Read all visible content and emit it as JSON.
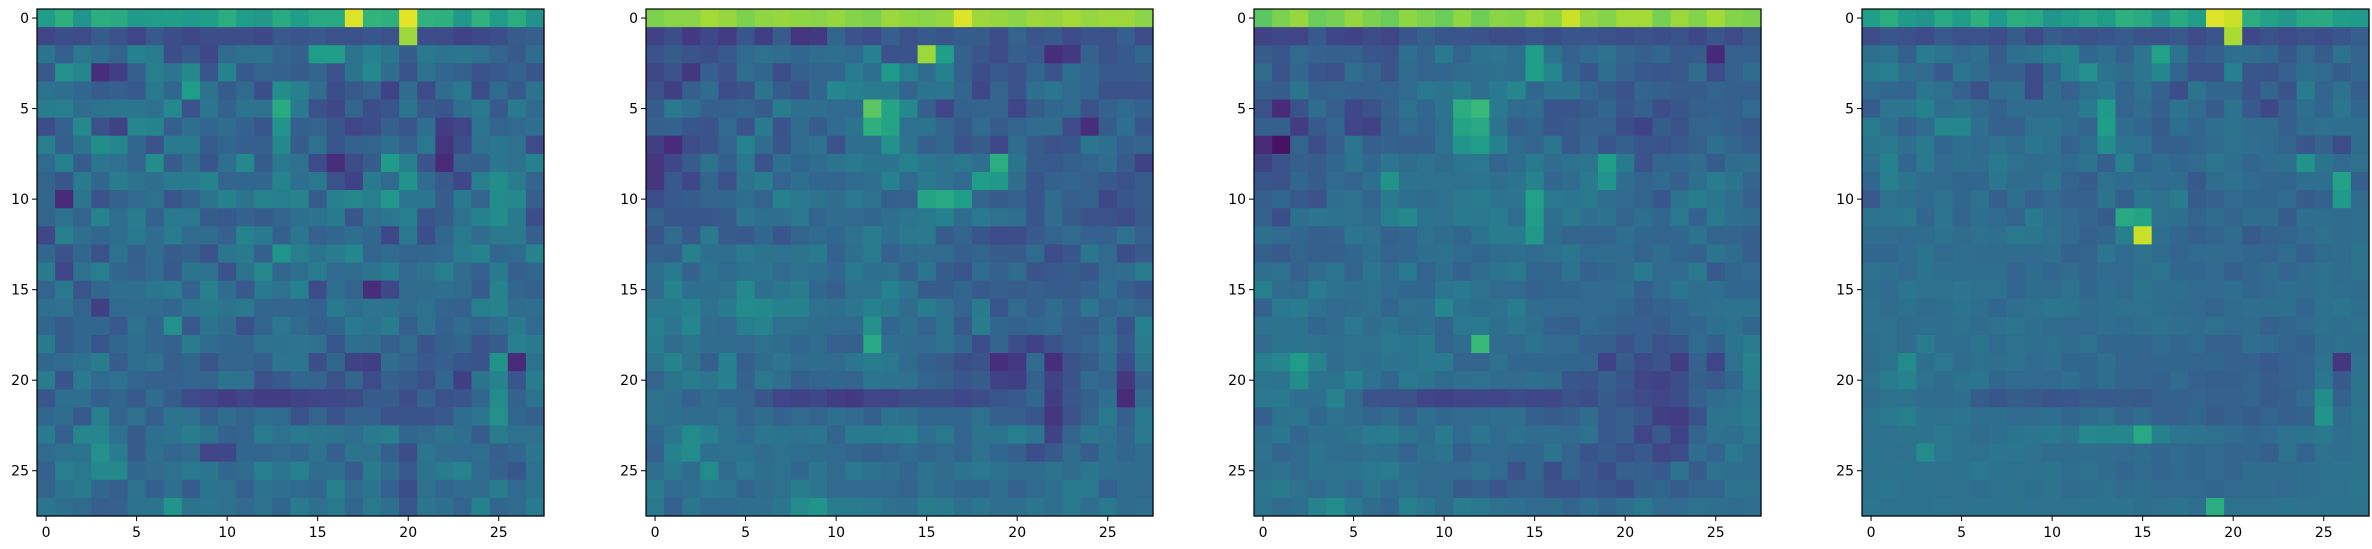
{
  "colormap": {
    "name": "viridis",
    "stops": [
      "#440154",
      "#482878",
      "#3e4989",
      "#31688e",
      "#26828e",
      "#1f9e89",
      "#35b779",
      "#6ece58",
      "#b5de2b",
      "#fde725"
    ]
  },
  "chart_data": [
    {
      "type": "heatmap",
      "title": "",
      "xlabel": "",
      "ylabel": "",
      "rows": 28,
      "cols": 28,
      "value_range": [
        0,
        1
      ],
      "xticks": [
        0,
        5,
        10,
        15,
        20,
        25
      ],
      "yticks": [
        0,
        5,
        10,
        15,
        20,
        25
      ],
      "xlim": [
        -0.5,
        27.5
      ],
      "ylim": [
        27.5,
        -0.5
      ],
      "values": "[[0.55,0.63,0.52,0.62,0.61,0.54,0.55,0.56,0.54,0.56,0.62,0.55,0.53,0.61,0.56,0.6,0.6,0.95,0.65,0.63,0.96,0.64,0.63,0.53,0.64,0.55,0.62,0.51],[0.21,0.24,0.23,0.29,0.26,0.21,0.28,0.24,0.22,0.24,0.24,0.24,0.22,0.28,0.27,0.28,0.25,0.25,0.27,0.25,0.85,0.24,0.23,0.2,0.22,0.24,0.29,0.3],[0.38,0.3,0.4,0.36,0.32,0.44,0.42,0.24,0.28,0.22,0.34,0.37,0.38,0.32,0.3,0.55,0.56,0.38,0.44,0.39,0.29,0.4,0.38,0.39,0.37,0.32,0.28,0.35],[0.28,0.5,0.46,0.13,0.19,0.3,0.43,0.39,0.47,0.27,0.45,0.28,0.32,0.31,0.29,0.32,0.25,0.38,0.47,0.35,0.26,0.37,0.33,0.31,0.26,0.28,0.31,0.27],[0.38,0.36,0.33,0.29,0.3,0.28,0.41,0.33,0.55,0.38,0.29,0.34,0.24,0.49,0.44,0.35,0.24,0.28,0.32,0.2,0.35,0.23,0.35,0.4,0.24,0.34,0.28,0.38],[0.42,0.43,0.35,0.38,0.39,0.39,0.37,0.47,0.26,0.39,0.31,0.38,0.37,0.61,0.41,0.25,0.22,0.32,0.24,0.27,0.38,0.28,0.27,0.36,0.4,0.28,0.41,0.34],[0.24,0.31,0.47,0.25,0.2,0.46,0.45,0.3,0.36,0.33,0.35,0.31,0.27,0.52,0.3,0.32,0.27,0.21,0.24,0.3,0.27,0.36,0.18,0.21,0.39,0.32,0.34,0.36],[0.43,0.3,0.38,0.49,0.46,0.33,0.26,0.41,0.41,0.29,0.33,0.3,0.3,0.47,0.29,0.37,0.27,0.31,0.32,0.36,0.31,0.4,0.15,0.24,0.37,0.39,0.37,0.23],[0.34,0.44,0.29,0.39,0.37,0.32,0.49,0.29,0.36,0.27,0.36,0.47,0.29,0.4,0.37,0.23,0.13,0.23,0.29,0.54,0.43,0.26,0.12,0.31,0.3,0.39,0.37,0.44],[0.32,0.27,0.41,0.33,0.42,0.38,0.36,0.41,0.41,0.45,0.32,0.33,0.33,0.45,0.36,0.4,0.25,0.2,0.41,0.34,0.51,0.35,0.28,0.22,0.43,0.49,0.42,0.32],[0.33,0.12,0.39,0.26,0.31,0.34,0.37,0.27,0.31,0.38,0.44,0.38,0.45,0.43,0.45,0.29,0.43,0.47,0.43,0.53,0.39,0.39,0.29,0.41,0.32,0.48,0.47,0.3],[0.32,0.37,0.32,0.45,0.36,0.42,0.31,0.41,0.4,0.29,0.28,0.31,0.29,0.32,0.36,0.38,0.41,0.27,0.37,0.39,0.43,0.27,0.29,0.37,0.44,0.48,0.41,0.24],[0.22,0.43,0.36,0.33,0.36,0.41,0.35,0.42,0.34,0.35,0.31,0.45,0.41,0.3,0.39,0.31,0.33,0.36,0.33,0.22,0.4,0.24,0.33,0.4,0.35,0.4,0.41,0.3],[0.33,0.25,0.33,0.25,0.37,0.3,0.35,0.29,0.31,0.26,0.39,0.41,0.3,0.52,0.43,0.38,0.42,0.46,0.32,0.34,0.32,0.33,0.34,0.42,0.45,0.33,0.34,0.45],[0.41,0.21,0.37,0.43,0.33,0.31,0.34,0.28,0.38,0.37,0.26,0.38,0.47,0.33,0.36,0.42,0.34,0.35,0.38,0.42,0.34,0.37,0.43,0.35,0.31,0.41,0.3,0.33],[0.32,0.4,0.27,0.33,0.36,0.36,0.39,0.41,0.31,0.43,0.35,0.28,0.41,0.37,0.44,0.23,0.36,0.32,0.13,0.22,0.35,0.35,0.36,0.34,0.29,0.45,0.33,0.31],[0.36,0.37,0.32,0.19,0.34,0.35,0.35,0.33,0.39,0.41,0.38,0.4,0.33,0.32,0.33,0.31,0.41,0.36,0.39,0.38,0.34,0.37,0.32,0.31,0.43,0.45,0.35,0.36],[0.33,0.29,0.33,0.33,0.28,0.37,0.33,0.5,0.28,0.38,0.35,0.25,0.32,0.4,0.34,0.3,0.33,0.41,0.38,0.42,0.3,0.37,0.31,0.34,0.32,0.35,0.41,0.34],[0.41,0.29,0.33,0.27,0.33,0.36,0.33,0.31,0.42,0.35,0.33,0.32,0.37,0.38,0.39,0.37,0.27,0.36,0.35,0.3,0.35,0.26,0.3,0.33,0.26,0.29,0.43,0.41],[0.33,0.34,0.37,0.42,0.29,0.36,0.37,0.3,0.33,0.27,0.32,0.32,0.3,0.39,0.39,0.24,0.33,0.2,0.19,0.35,0.32,0.28,0.3,0.27,0.26,0.51,0.12,0.38],[0.42,0.26,0.41,0.34,0.37,0.33,0.31,0.31,0.32,0.32,0.38,0.37,0.25,0.28,0.33,0.32,0.25,0.32,0.23,0.31,0.29,0.25,0.33,0.19,0.38,0.45,0.27,0.42],[0.27,0.36,0.36,0.3,0.33,0.28,0.35,0.29,0.23,0.21,0.18,0.21,0.18,0.18,0.2,0.21,0.22,0.23,0.29,0.29,0.24,0.31,0.25,0.27,0.33,0.48,0.31,0.38],[0.33,0.35,0.28,0.43,0.32,0.37,0.3,0.38,0.37,0.3,0.35,0.32,0.36,0.34,0.26,0.32,0.26,0.31,0.31,0.26,0.26,0.26,0.28,0.35,0.39,0.5,0.33,0.3],[0.41,0.3,0.46,0.46,0.37,0.29,0.36,0.38,0.42,0.38,0.31,0.32,0.42,0.37,0.41,0.39,0.38,0.36,0.41,0.43,0.33,0.34,0.38,0.36,0.29,0.42,0.37,0.37],[0.34,0.37,0.38,0.5,0.42,0.29,0.36,0.33,0.34,0.21,0.22,0.33,0.32,0.34,0.33,0.37,0.3,0.38,0.37,0.3,0.24,0.39,0.35,0.34,0.36,0.3,0.33,0.39],[0.31,0.43,0.4,0.47,0.47,0.33,0.35,0.37,0.4,0.39,0.33,0.35,0.43,0.39,0.44,0.35,0.36,0.29,0.41,0.35,0.28,0.38,0.42,0.45,0.34,0.31,0.27,0.37],[0.32,0.38,0.41,0.33,0.3,0.37,0.3,0.36,0.29,0.38,0.37,0.31,0.38,0.36,0.34,0.33,0.43,0.34,0.38,0.31,0.24,0.37,0.33,0.34,0.35,0.42,0.34,0.38],[0.39,0.36,0.34,0.3,0.31,0.38,0.38,0.52,0.38,0.39,0.37,0.34,0.37,0.33,0.41,0.36,0.4,0.33,0.4,0.36,0.27,0.39,0.36,0.32,0.44,0.33,0.34,0.41]]"
    },
    {
      "type": "heatmap",
      "title": "",
      "xlabel": "",
      "ylabel": "",
      "rows": 28,
      "cols": 28,
      "value_range": [
        0,
        1
      ],
      "xticks": [
        0,
        5,
        10,
        15,
        20,
        25
      ],
      "yticks": [
        0,
        5,
        10,
        15,
        20,
        25
      ],
      "xlim": [
        -0.5,
        27.5
      ],
      "ylim": [
        27.5,
        -0.5
      ],
      "values": "[[0.8,0.82,0.82,0.86,0.84,0.8,0.83,0.84,0.83,0.82,0.84,0.81,0.8,0.85,0.83,0.82,0.84,0.95,0.85,0.84,0.82,0.85,0.84,0.86,0.84,0.85,0.85,0.82],[0.2,0.24,0.17,0.22,0.18,0.27,0.19,0.29,0.15,0.17,0.32,0.26,0.23,0.3,0.25,0.28,0.27,0.29,0.29,0.24,0.32,0.27,0.28,0.23,0.26,0.25,0.3,0.23],[0.26,0.29,0.26,0.24,0.28,0.34,0.37,0.35,0.33,0.35,0.36,0.34,0.44,0.25,0.26,0.85,0.56,0.31,0.27,0.23,0.3,0.28,0.13,0.17,0.31,0.25,0.28,0.33],[0.22,0.25,0.16,0.3,0.25,0.36,0.33,0.24,0.3,0.32,0.33,0.42,0.36,0.54,0.43,0.35,0.44,0.31,0.24,0.28,0.25,0.33,0.26,0.36,0.33,0.28,0.28,0.29],[0.25,0.19,0.3,0.35,0.24,0.26,0.38,0.29,0.26,0.33,0.46,0.44,0.42,0.41,0.32,0.38,0.39,0.32,0.22,0.32,0.25,0.36,0.39,0.34,0.33,0.26,0.26,0.26],[0.29,0.4,0.36,0.3,0.31,0.33,0.29,0.42,0.36,0.36,0.34,0.34,0.74,0.58,0.47,0.3,0.21,0.31,0.32,0.32,0.21,0.29,0.33,0.35,0.25,0.31,0.34,0.31],[0.3,0.31,0.27,0.26,0.34,0.26,0.41,0.26,0.35,0.29,0.34,0.38,0.63,0.58,0.37,0.38,0.32,0.28,0.34,0.29,0.32,0.35,0.35,0.23,0.13,0.29,0.36,0.27],[0.19,0.12,0.23,0.26,0.32,0.45,0.35,0.27,0.34,0.37,0.25,0.36,0.36,0.5,0.38,0.3,0.33,0.26,0.29,0.22,0.35,0.29,0.25,0.27,0.39,0.36,0.3,0.32],[0.15,0.22,0.29,0.37,0.3,0.4,0.26,0.36,0.33,0.35,0.38,0.41,0.38,0.38,0.44,0.39,0.37,0.4,0.36,0.62,0.38,0.29,0.28,0.3,0.32,0.35,0.29,0.2],[0.16,0.28,0.22,0.32,0.25,0.38,0.42,0.32,0.36,0.33,0.32,0.34,0.36,0.44,0.34,0.41,0.37,0.34,0.55,0.53,0.35,0.27,0.31,0.32,0.31,0.28,0.25,0.29],[0.24,0.28,0.29,0.32,0.33,0.36,0.32,0.44,0.4,0.38,0.35,0.4,0.37,0.3,0.31,0.58,0.6,0.56,0.32,0.29,0.31,0.27,0.34,0.3,0.31,0.22,0.27,0.29],[0.31,0.27,0.27,0.27,0.29,0.39,0.36,0.36,0.4,0.32,0.35,0.34,0.33,0.36,0.39,0.4,0.44,0.35,0.41,0.37,0.36,0.27,0.35,0.29,0.25,0.25,0.23,0.28],[0.27,0.35,0.28,0.41,0.29,0.28,0.33,0.27,0.32,0.34,0.33,0.37,0.42,0.36,0.4,0.41,0.29,0.32,0.27,0.23,0.24,0.28,0.32,0.34,0.31,0.31,0.37,0.31],[0.31,0.3,0.43,0.36,0.36,0.4,0.38,0.37,0.38,0.41,0.31,0.36,0.42,0.31,0.34,0.35,0.34,0.3,0.32,0.29,0.29,0.34,0.23,0.27,0.39,0.34,0.24,0.28],[0.36,0.41,0.31,0.38,0.34,0.38,0.39,0.34,0.37,0.36,0.33,0.41,0.36,0.37,0.31,0.39,0.29,0.27,0.34,0.31,0.35,0.26,0.28,0.29,0.27,0.34,0.35,0.42],[0.34,0.45,0.36,0.36,0.37,0.47,0.36,0.39,0.42,0.33,0.3,0.37,0.37,0.44,0.38,0.29,0.29,0.33,0.28,0.3,0.29,0.3,0.29,0.29,0.31,0.36,0.3,0.27],[0.4,0.41,0.44,0.37,0.41,0.48,0.47,0.44,0.44,0.37,0.36,0.39,0.44,0.41,0.35,0.42,0.37,0.32,0.41,0.27,0.34,0.3,0.35,0.31,0.39,0.32,0.35,0.32],[0.43,0.39,0.46,0.35,0.34,0.43,0.45,0.37,0.37,0.35,0.34,0.34,0.5,0.33,0.36,0.32,0.38,0.28,0.42,0.33,0.31,0.33,0.34,0.3,0.29,0.35,0.26,0.44],[0.42,0.35,0.39,0.35,0.35,0.34,0.37,0.35,0.33,0.35,0.31,0.3,0.6,0.36,0.35,0.34,0.37,0.33,0.24,0.32,0.24,0.2,0.26,0.3,0.32,0.37,0.28,0.42],[0.39,0.45,0.38,0.3,0.44,0.3,0.35,0.39,0.34,0.35,0.34,0.39,0.42,0.4,0.34,0.3,0.29,0.24,0.26,0.13,0.17,0.34,0.13,0.25,0.29,0.35,0.24,0.39],[0.32,0.38,0.42,0.39,0.44,0.31,0.4,0.36,0.3,0.32,0.33,0.32,0.39,0.38,0.37,0.32,0.3,0.27,0.29,0.2,0.19,0.31,0.2,0.26,0.34,0.32,0.16,0.31],[0.37,0.36,0.31,0.35,0.33,0.32,0.27,0.21,0.2,0.22,0.18,0.17,0.21,0.21,0.24,0.24,0.24,0.22,0.24,0.27,0.28,0.33,0.18,0.27,0.3,0.36,0.12,0.35],[0.38,0.36,0.35,0.35,0.37,0.32,0.35,0.31,0.34,0.32,0.36,0.34,0.3,0.38,0.36,0.33,0.33,0.33,0.37,0.3,0.3,0.27,0.16,0.25,0.32,0.4,0.3,0.41],[0.33,0.39,0.48,0.44,0.38,0.34,0.39,0.38,0.37,0.39,0.32,0.41,0.41,0.42,0.43,0.36,0.4,0.32,0.38,0.38,0.43,0.39,0.2,0.32,0.39,0.37,0.32,0.41],[0.31,0.44,0.48,0.36,0.37,0.38,0.35,0.37,0.36,0.35,0.34,0.32,0.3,0.32,0.34,0.32,0.34,0.32,0.37,0.33,0.3,0.24,0.28,0.35,0.29,0.36,0.33,0.35],[0.36,0.4,0.35,0.48,0.35,0.4,0.36,0.37,0.33,0.39,0.34,0.4,0.38,0.36,0.33,0.38,0.35,0.38,0.4,0.38,0.35,0.35,0.38,0.35,0.39,0.36,0.35,0.35],[0.42,0.34,0.36,0.4,0.39,0.32,0.35,0.37,0.42,0.39,0.34,0.34,0.34,0.34,0.32,0.37,0.34,0.33,0.33,0.36,0.31,0.34,0.36,0.41,0.4,0.31,0.35,0.34],[0.4,0.31,0.39,0.34,0.34,0.36,0.36,0.39,0.48,0.52,0.42,0.42,0.4,0.37,0.36,0.42,0.41,0.36,0.39,0.36,0.36,0.39,0.36,0.4,0.36,0.4,0.35,0.36]]"
    },
    {
      "type": "heatmap",
      "title": "",
      "xlabel": "",
      "ylabel": "",
      "rows": 28,
      "cols": 28,
      "value_range": [
        0,
        1
      ],
      "xticks": [
        0,
        5,
        10,
        15,
        20,
        25
      ],
      "yticks": [
        0,
        5,
        10,
        15,
        20,
        25
      ],
      "xlim": [
        -0.5,
        27.5
      ],
      "ylim": [
        27.5,
        -0.5
      ],
      "values": "[[0.74,0.8,0.84,0.77,0.79,0.84,0.8,0.77,0.83,0.8,0.77,0.83,0.78,0.82,0.81,0.86,0.83,0.92,0.84,0.81,0.86,0.86,0.79,0.85,0.81,0.86,0.81,0.8],[0.2,0.22,0.21,0.28,0.22,0.2,0.23,0.21,0.27,0.3,0.27,0.27,0.26,0.24,0.24,0.27,0.24,0.27,0.27,0.25,0.24,0.26,0.24,0.26,0.22,0.27,0.23,0.28],[0.29,0.27,0.34,0.31,0.3,0.31,0.27,0.26,0.36,0.32,0.41,0.32,0.38,0.39,0.36,0.56,0.38,0.31,0.34,0.37,0.32,0.3,0.33,0.28,0.29,0.11,0.31,0.31],[0.35,0.26,0.33,0.27,0.25,0.36,0.32,0.26,0.35,0.32,0.33,0.35,0.36,0.37,0.36,0.56,0.46,0.33,0.27,0.36,0.31,0.28,0.27,0.28,0.35,0.23,0.31,0.35],[0.3,0.29,0.38,0.31,0.32,0.31,0.31,0.32,0.34,0.4,0.38,0.42,0.36,0.41,0.46,0.33,0.38,0.38,0.33,0.29,0.25,0.32,0.3,0.29,0.29,0.32,0.3,0.3],[0.25,0.12,0.25,0.35,0.3,0.22,0.25,0.31,0.37,0.33,0.38,0.62,0.67,0.41,0.34,0.35,0.27,0.27,0.29,0.33,0.27,0.3,0.24,0.27,0.3,0.31,0.3,0.34],[0.3,0.3,0.18,0.28,0.33,0.21,0.2,0.3,0.34,0.32,0.37,0.58,0.6,0.38,0.3,0.33,0.27,0.28,0.31,0.31,0.24,0.2,0.29,0.25,0.32,0.32,0.3,0.28],[0.12,0.05,0.32,0.24,0.3,0.39,0.3,0.31,0.3,0.3,0.37,0.52,0.55,0.44,0.34,0.32,0.39,0.28,0.32,0.27,0.3,0.27,0.26,0.28,0.31,0.36,0.33,0.3],[0.2,0.25,0.3,0.29,0.33,0.38,0.33,0.39,0.35,0.37,0.35,0.39,0.4,0.32,0.35,0.41,0.35,0.37,0.39,0.56,0.41,0.26,0.32,0.33,0.35,0.29,0.35,0.36],[0.27,0.25,0.33,0.29,0.34,0.32,0.36,0.51,0.38,0.37,0.37,0.37,0.39,0.36,0.38,0.45,0.33,0.35,0.41,0.52,0.35,0.32,0.34,0.3,0.36,0.42,0.38,0.32],[0.3,0.33,0.28,0.26,0.36,0.37,0.32,0.41,0.36,0.35,0.37,0.4,0.42,0.38,0.39,0.57,0.4,0.39,0.4,0.36,0.34,0.32,0.27,0.38,0.42,0.39,0.36,0.31],[0.31,0.24,0.36,0.39,0.38,0.37,0.35,0.43,0.47,0.38,0.37,0.41,0.4,0.42,0.36,0.55,0.36,0.4,0.36,0.38,0.32,0.36,0.33,0.4,0.31,0.4,0.36,0.35],[0.36,0.34,0.33,0.3,0.31,0.39,0.37,0.31,0.33,0.37,0.35,0.33,0.38,0.42,0.42,0.53,0.35,0.32,0.32,0.32,0.36,0.33,0.32,0.33,0.38,0.32,0.32,0.3],[0.3,0.28,0.32,0.3,0.3,0.33,0.36,0.32,0.33,0.36,0.37,0.34,0.33,0.35,0.36,0.34,0.37,0.39,0.34,0.35,0.34,0.32,0.35,0.33,0.31,0.38,0.35,0.3],[0.36,0.37,0.31,0.35,0.39,0.32,0.39,0.34,0.41,0.32,0.36,0.31,0.35,0.38,0.4,0.33,0.32,0.38,0.31,0.33,0.35,0.41,0.34,0.34,0.4,0.28,0.33,0.34],[0.43,0.35,0.34,0.42,0.38,0.36,0.37,0.34,0.33,0.33,0.39,0.41,0.37,0.34,0.34,0.31,0.33,0.33,0.34,0.34,0.36,0.3,0.34,0.39,0.36,0.36,0.33,0.33],[0.31,0.4,0.42,0.37,0.34,0.35,0.37,0.33,0.37,0.36,0.46,0.38,0.36,0.37,0.42,0.35,0.34,0.34,0.34,0.34,0.33,0.29,0.31,0.33,0.36,0.37,0.38,0.38],[0.37,0.38,0.38,0.33,0.35,0.4,0.35,0.38,0.35,0.36,0.32,0.4,0.41,0.36,0.39,0.36,0.31,0.3,0.34,0.33,0.3,0.3,0.29,0.33,0.33,0.36,0.37,0.33],[0.34,0.38,0.38,0.37,0.36,0.37,0.37,0.4,0.39,0.41,0.32,0.35,0.67,0.35,0.34,0.38,0.34,0.35,0.3,0.3,0.26,0.3,0.25,0.27,0.34,0.3,0.38,0.42],[0.43,0.46,0.55,0.45,0.35,0.37,0.36,0.38,0.39,0.4,0.41,0.32,0.32,0.37,0.33,0.33,0.33,0.33,0.32,0.2,0.29,0.23,0.26,0.18,0.31,0.21,0.37,0.45],[0.39,0.38,0.49,0.38,0.38,0.44,0.37,0.33,0.4,0.38,0.34,0.36,0.37,0.35,0.35,0.36,0.35,0.27,0.26,0.3,0.27,0.21,0.2,0.24,0.3,0.28,0.33,0.43],[0.4,0.41,0.36,0.36,0.45,0.34,0.26,0.25,0.25,0.21,0.2,0.21,0.22,0.21,0.23,0.22,0.22,0.25,0.24,0.29,0.25,0.23,0.21,0.24,0.31,0.35,0.37,0.4],[0.3,0.38,0.39,0.33,0.37,0.35,0.32,0.35,0.31,0.36,0.33,0.34,0.34,0.36,0.36,0.3,0.29,0.3,0.35,0.28,0.3,0.27,0.19,0.18,0.26,0.38,0.39,0.42],[0.36,0.39,0.33,0.36,0.36,0.38,0.41,0.42,0.38,0.35,0.41,0.34,0.39,0.34,0.37,0.35,0.35,0.34,0.37,0.28,0.3,0.21,0.28,0.2,0.32,0.37,0.36,0.4],[0.37,0.32,0.34,0.38,0.36,0.35,0.37,0.36,0.32,0.36,0.38,0.3,0.34,0.34,0.33,0.33,0.38,0.32,0.26,0.29,0.25,0.28,0.21,0.23,0.35,0.32,0.4,0.36],[0.36,0.37,0.34,0.38,0.37,0.38,0.4,0.42,0.36,0.35,0.34,0.34,0.37,0.34,0.26,0.33,0.24,0.32,0.28,0.24,0.31,0.3,0.28,0.38,0.29,0.37,0.36,0.36],[0.39,0.41,0.37,0.34,0.38,0.34,0.39,0.34,0.38,0.34,0.35,0.29,0.31,0.27,0.3,0.31,0.25,0.25,0.28,0.27,0.24,0.3,0.33,0.29,0.32,0.32,0.38,0.37],[0.38,0.35,0.36,0.45,0.49,0.41,0.35,0.33,0.43,0.39,0.35,0.42,0.4,0.37,0.36,0.34,0.35,0.32,0.36,0.33,0.36,0.4,0.34,0.35,0.37,0.36,0.35,0.36]]"
    },
    {
      "type": "heatmap",
      "title": "",
      "xlabel": "",
      "ylabel": "",
      "rows": 28,
      "cols": 28,
      "value_range": [
        0,
        1
      ],
      "xticks": [
        0,
        5,
        10,
        15,
        20,
        25
      ],
      "yticks": [
        0,
        5,
        10,
        15,
        20,
        25
      ],
      "xlim": [
        -0.5,
        27.5
      ],
      "ylim": [
        27.5,
        -0.5
      ],
      "values": "[[0.55,0.62,0.54,0.52,0.6,0.55,0.63,0.54,0.62,0.6,0.52,0.55,0.59,0.55,0.63,0.61,0.53,0.61,0.55,0.95,0.92,0.62,0.57,0.53,0.6,0.61,0.56,0.54],[0.23,0.27,0.25,0.23,0.28,0.25,0.26,0.24,0.29,0.23,0.29,0.27,0.25,0.27,0.29,0.26,0.25,0.28,0.23,0.27,0.87,0.22,0.25,0.23,0.25,0.24,0.27,0.3],[0.36,0.38,0.3,0.42,0.39,0.34,0.36,0.29,0.36,0.38,0.43,0.45,0.33,0.36,0.31,0.39,0.57,0.38,0.28,0.3,0.36,0.35,0.33,0.27,0.34,0.29,0.37,0.32],[0.41,0.43,0.36,0.34,0.28,0.39,0.35,0.3,0.3,0.24,0.33,0.44,0.5,0.38,0.35,0.39,0.46,0.33,0.25,0.25,0.44,0.27,0.26,0.31,0.36,0.34,0.29,0.33],[0.34,0.33,0.32,0.39,0.37,0.31,0.25,0.35,0.36,0.23,0.35,0.31,0.37,0.41,0.32,0.37,0.31,0.24,0.38,0.33,0.33,0.26,0.32,0.26,0.42,0.32,0.37,0.3],[0.29,0.39,0.39,0.44,0.36,0.38,0.34,0.31,0.35,0.35,0.35,0.35,0.41,0.54,0.32,0.35,0.3,0.38,0.34,0.29,0.38,0.28,0.22,0.3,0.36,0.33,0.39,0.33],[0.42,0.36,0.31,0.35,0.46,0.46,0.36,0.31,0.31,0.37,0.38,0.35,0.32,0.55,0.35,0.33,0.29,0.36,0.33,0.36,0.38,0.35,0.35,0.3,0.35,0.37,0.36,0.36],[0.39,0.4,0.36,0.41,0.33,0.36,0.34,0.37,0.35,0.39,0.37,0.31,0.36,0.49,0.38,0.37,0.3,0.3,0.33,0.35,0.37,0.36,0.34,0.32,0.27,0.31,0.23,0.35],[0.36,0.44,0.33,0.4,0.34,0.36,0.35,0.4,0.37,0.35,0.36,0.34,0.38,0.3,0.45,0.33,0.35,0.33,0.34,0.39,0.36,0.33,0.35,0.36,0.51,0.38,0.34,0.37],[0.33,0.43,0.38,0.35,0.35,0.33,0.33,0.39,0.35,0.35,0.38,0.32,0.29,0.37,0.34,0.36,0.34,0.35,0.28,0.35,0.37,0.34,0.33,0.33,0.36,0.36,0.57,0.3],[0.28,0.37,0.36,0.34,0.37,0.33,0.37,0.3,0.36,0.31,0.34,0.31,0.31,0.38,0.3,0.39,0.37,0.42,0.29,0.31,0.34,0.33,0.33,0.34,0.29,0.31,0.54,0.34],[0.38,0.39,0.4,0.33,0.39,0.32,0.36,0.34,0.32,0.41,0.36,0.34,0.32,0.29,0.6,0.58,0.37,0.36,0.32,0.35,0.32,0.35,0.35,0.29,0.36,0.36,0.35,0.36],[0.35,0.35,0.34,0.35,0.38,0.35,0.37,0.36,0.4,0.39,0.37,0.34,0.31,0.33,0.43,0.92,0.36,0.33,0.3,0.32,0.35,0.28,0.31,0.32,0.34,0.37,0.35,0.36],[0.33,0.33,0.35,0.38,0.34,0.36,0.35,0.35,0.35,0.34,0.36,0.31,0.32,0.39,0.34,0.37,0.35,0.32,0.34,0.35,0.34,0.33,0.32,0.34,0.31,0.34,0.35,0.38],[0.37,0.36,0.34,0.38,0.36,0.36,0.36,0.36,0.32,0.35,0.33,0.35,0.32,0.34,0.34,0.36,0.39,0.33,0.33,0.34,0.3,0.33,0.35,0.32,0.35,0.37,0.35,0.37],[0.36,0.34,0.39,0.37,0.37,0.39,0.37,0.37,0.33,0.35,0.34,0.37,0.33,0.36,0.34,0.38,0.36,0.36,0.34,0.34,0.36,0.33,0.34,0.36,0.35,0.37,0.36,0.35],[0.37,0.35,0.37,0.35,0.36,0.38,0.36,0.33,0.36,0.37,0.39,0.38,0.35,0.36,0.37,0.37,0.36,0.35,0.34,0.32,0.35,0.36,0.36,0.36,0.33,0.37,0.39,0.36],[0.37,0.37,0.35,0.36,0.36,0.37,0.35,0.37,0.39,0.36,0.35,0.34,0.34,0.36,0.34,0.36,0.37,0.36,0.35,0.37,0.34,0.35,0.31,0.33,0.34,0.37,0.36,0.37],[0.36,0.37,0.35,0.42,0.36,0.36,0.38,0.34,0.37,0.36,0.37,0.35,0.37,0.33,0.33,0.33,0.34,0.33,0.34,0.31,0.31,0.36,0.34,0.32,0.3,0.36,0.37,0.36],[0.35,0.38,0.48,0.36,0.4,0.35,0.37,0.36,0.37,0.34,0.36,0.33,0.33,0.36,0.33,0.32,0.33,0.33,0.32,0.33,0.31,0.31,0.28,0.31,0.32,0.37,0.16,0.37],[0.37,0.42,0.45,0.37,0.35,0.38,0.39,0.33,0.34,0.34,0.34,0.36,0.33,0.36,0.32,0.32,0.31,0.34,0.31,0.3,0.3,0.32,0.29,0.31,0.32,0.39,0.28,0.38],[0.35,0.38,0.37,0.35,0.35,0.36,0.29,0.27,0.29,0.28,0.26,0.27,0.29,0.28,0.29,0.28,0.31,0.31,0.32,0.31,0.31,0.32,0.29,0.3,0.34,0.49,0.31,0.37],[0.38,0.4,0.43,0.38,0.37,0.39,0.36,0.36,0.34,0.35,0.36,0.33,0.35,0.37,0.32,0.35,0.31,0.31,0.33,0.29,0.31,0.29,0.32,0.3,0.31,0.52,0.35,0.39],[0.37,0.37,0.38,0.38,0.4,0.37,0.35,0.36,0.38,0.39,0.4,0.38,0.47,0.46,0.46,0.6,0.44,0.39,0.38,0.37,0.35,0.33,0.34,0.37,0.38,0.4,0.36,0.38],[0.38,0.37,0.37,0.48,0.4,0.38,0.37,0.39,0.39,0.37,0.35,0.35,0.36,0.35,0.34,0.35,0.33,0.34,0.33,0.34,0.32,0.33,0.3,0.37,0.32,0.37,0.36,0.37],[0.37,0.38,0.38,0.37,0.37,0.38,0.4,0.38,0.37,0.37,0.38,0.36,0.37,0.35,0.33,0.34,0.32,0.34,0.33,0.34,0.32,0.35,0.35,0.35,0.36,0.37,0.38,0.38],[0.38,0.39,0.37,0.38,0.37,0.37,0.36,0.37,0.38,0.36,0.38,0.35,0.36,0.37,0.35,0.36,0.34,0.34,0.34,0.33,0.34,0.35,0.35,0.34,0.36,0.37,0.37,0.39],[0.39,0.37,0.38,0.37,0.39,0.37,0.38,0.38,0.38,0.37,0.37,0.37,0.38,0.38,0.38,0.36,0.37,0.38,0.36,0.62,0.37,0.37,0.37,0.38,0.37,0.37,0.38,0.38]]"
    }
  ]
}
